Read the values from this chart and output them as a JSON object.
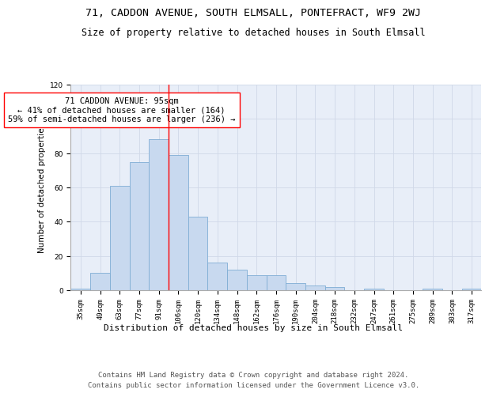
{
  "title1": "71, CADDON AVENUE, SOUTH ELMSALL, PONTEFRACT, WF9 2WJ",
  "title2": "Size of property relative to detached houses in South Elmsall",
  "xlabel": "Distribution of detached houses by size in South Elmsall",
  "ylabel": "Number of detached properties",
  "categories": [
    "35sqm",
    "49sqm",
    "63sqm",
    "77sqm",
    "91sqm",
    "106sqm",
    "120sqm",
    "134sqm",
    "148sqm",
    "162sqm",
    "176sqm",
    "190sqm",
    "204sqm",
    "218sqm",
    "232sqm",
    "247sqm",
    "261sqm",
    "275sqm",
    "289sqm",
    "303sqm",
    "317sqm"
  ],
  "values": [
    1,
    10,
    61,
    75,
    88,
    79,
    43,
    16,
    12,
    9,
    9,
    4,
    3,
    2,
    0,
    1,
    0,
    0,
    1,
    0,
    1
  ],
  "bar_color": "#c8d9ef",
  "bar_edge_color": "#7fadd4",
  "grid_color": "#d0d8e8",
  "bg_color": "#e8eef8",
  "annotation_text": "71 CADDON AVENUE: 95sqm\n← 41% of detached houses are smaller (164)\n59% of semi-detached houses are larger (236) →",
  "red_line_x": 4.5,
  "ylim": [
    0,
    120
  ],
  "yticks": [
    0,
    20,
    40,
    60,
    80,
    100,
    120
  ],
  "footnote_line1": "Contains HM Land Registry data © Crown copyright and database right 2024.",
  "footnote_line2": "Contains public sector information licensed under the Government Licence v3.0.",
  "title1_fontsize": 9.5,
  "title2_fontsize": 8.5,
  "xlabel_fontsize": 8,
  "ylabel_fontsize": 7.5,
  "tick_fontsize": 6.5,
  "annot_fontsize": 7.5,
  "footnote_fontsize": 6.5
}
